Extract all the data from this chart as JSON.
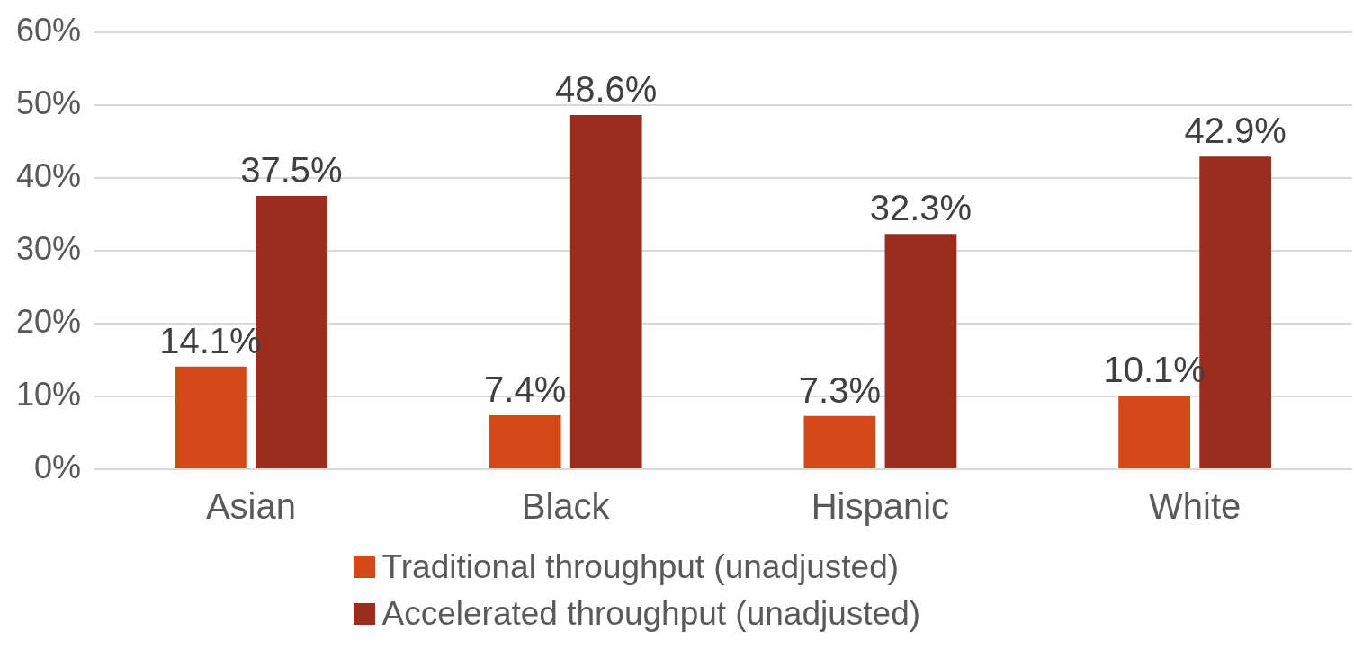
{
  "chart_data": {
    "type": "bar",
    "categories": [
      "Asian",
      "Black",
      "Hispanic",
      "White"
    ],
    "series": [
      {
        "name": "Traditional throughput (unadjusted)",
        "color": "#d34817",
        "values": [
          14.1,
          7.4,
          7.3,
          10.1
        ],
        "value_labels": [
          "14.1%",
          "7.4%",
          "7.3%",
          "10.1%"
        ]
      },
      {
        "name": "Accelerated throughput (unadjusted)",
        "color": "#9b2d1f",
        "values": [
          37.5,
          48.6,
          32.3,
          42.9
        ],
        "value_labels": [
          "37.5%",
          "48.6%",
          "32.3%",
          "42.9%"
        ]
      }
    ],
    "ylim": [
      0,
      60
    ],
    "yticks": [
      {
        "value": 0,
        "label": "0%"
      },
      {
        "value": 10,
        "label": "10%"
      },
      {
        "value": 20,
        "label": "20%"
      },
      {
        "value": 30,
        "label": "30%"
      },
      {
        "value": 40,
        "label": "40%"
      },
      {
        "value": 50,
        "label": "50%"
      },
      {
        "value": 60,
        "label": "60%"
      }
    ],
    "grid": "y",
    "legend": "bottom"
  }
}
